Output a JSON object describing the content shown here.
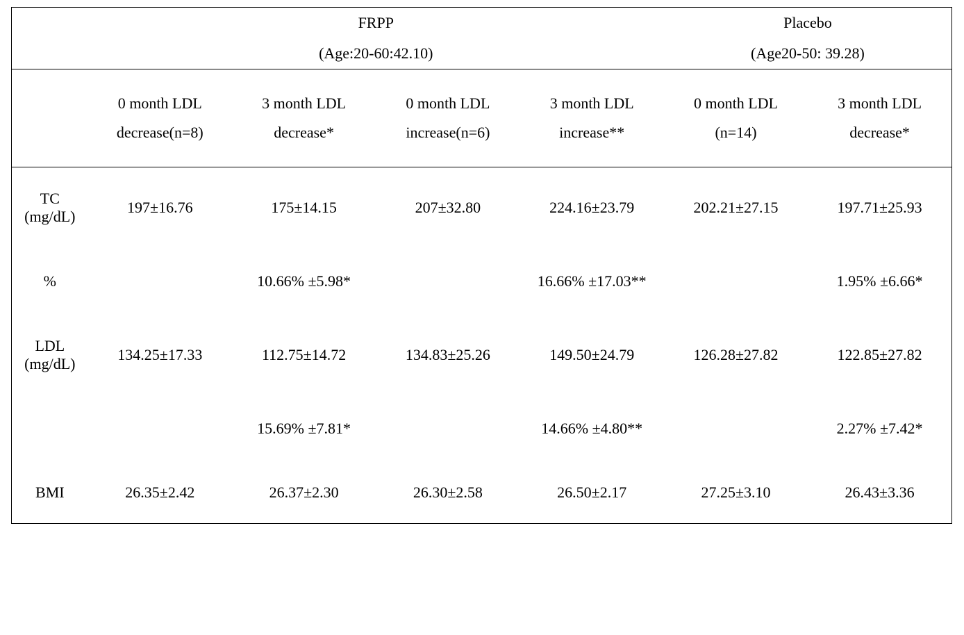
{
  "header": {
    "group1_name": "FRPP",
    "group1_age": "(Age:20-60:42.10)",
    "group2_name": "Placebo",
    "group2_age": "(Age20-50: 39.28)"
  },
  "col_headers": {
    "c1": "0 month LDL decrease(n=8)",
    "c2": "3 month LDL decrease*",
    "c3": "0 month LDL increase(n=6)",
    "c4": "3 month LDL increase**",
    "c5": "0 month LDL (n=14)",
    "c6": "3 month LDL decrease*"
  },
  "row_labels": {
    "tc": "TC (mg/dL)",
    "pct": "%",
    "ldl": "LDL (mg/dL)",
    "bmi": "BMI"
  },
  "tc": {
    "c1": "197±16.76",
    "c2": "175±14.15",
    "c3": "207±32.80",
    "c4": "224.16±23.79",
    "c5": "202.21±27.15",
    "c6": "197.71±25.93"
  },
  "tc_pct": {
    "c2": "10.66% ±5.98*",
    "c4": "16.66% ±17.03**",
    "c6": "1.95% ±6.66*"
  },
  "ldl": {
    "c1": "134.25±17.33",
    "c2": "112.75±14.72",
    "c3": "134.83±25.26",
    "c4": "149.50±24.79",
    "c5": "126.28±27.82",
    "c6": "122.85±27.82"
  },
  "ldl_pct": {
    "c2": "15.69% ±7.81*",
    "c4": "14.66% ±4.80**",
    "c6": "2.27% ±7.42*"
  },
  "bmi": {
    "c1": "26.35±2.42",
    "c2": "26.37±2.30",
    "c3": "26.30±2.58",
    "c4": "26.50±2.17",
    "c5": "27.25±3.10",
    "c6": "26.43±3.36"
  }
}
